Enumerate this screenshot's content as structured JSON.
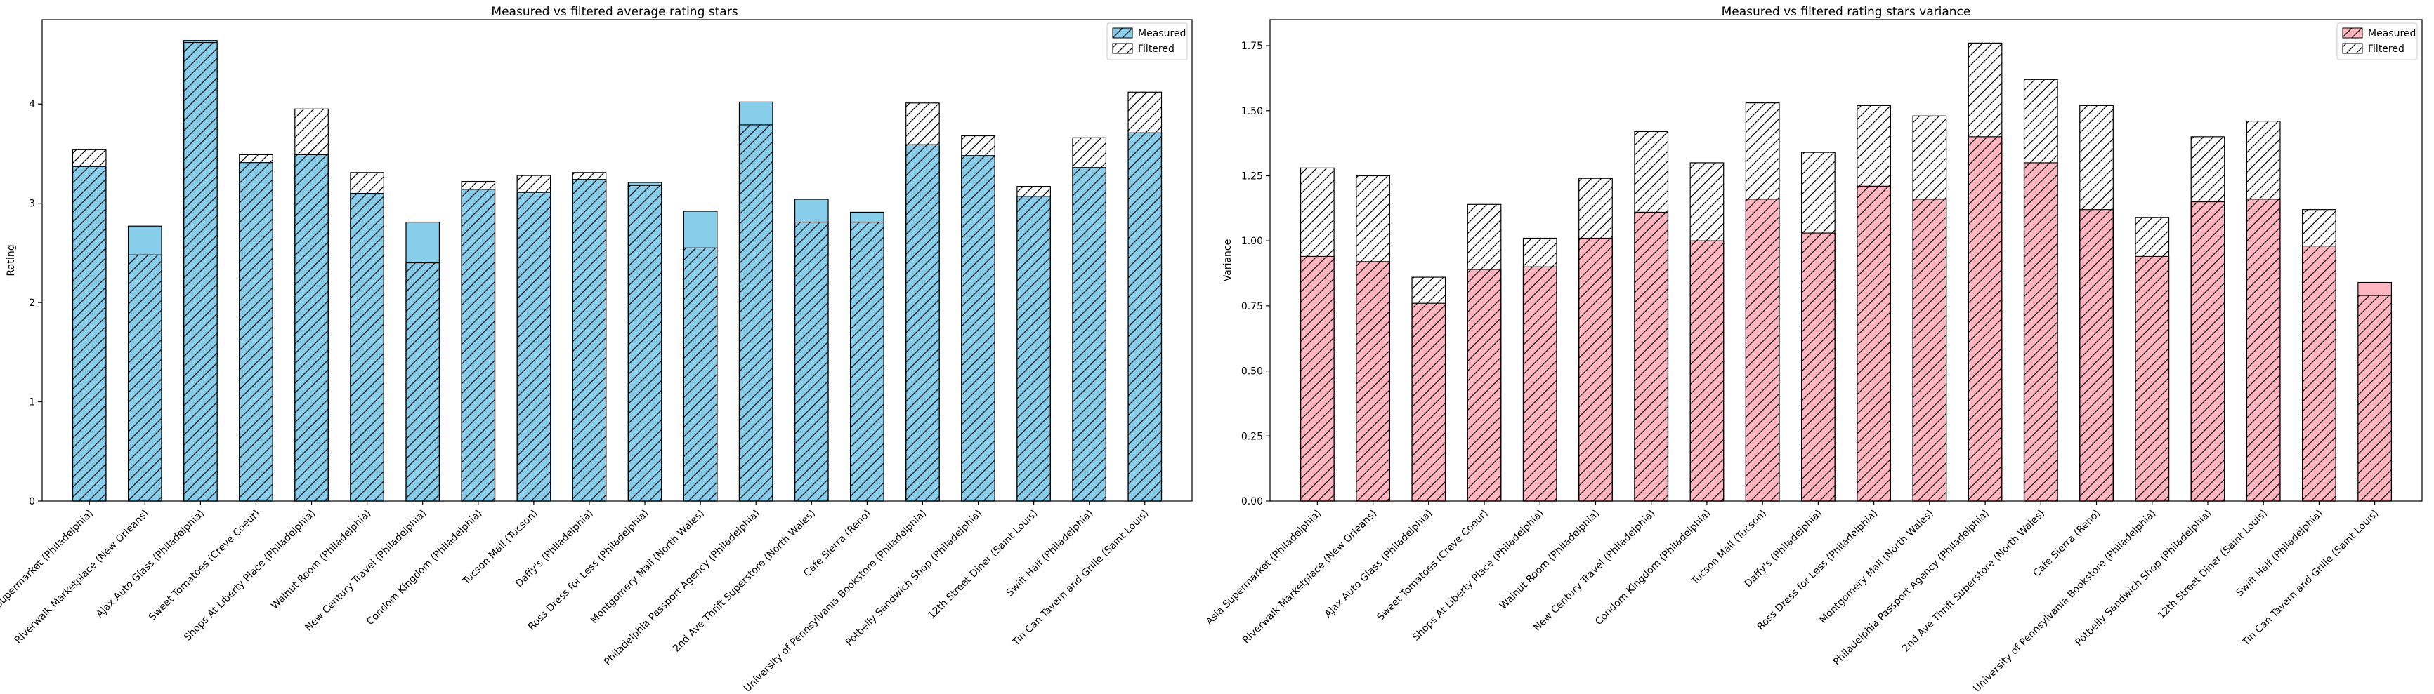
{
  "colors": {
    "measured_left": "#87ceeb",
    "measured_right": "#ffb6c1",
    "filtered": "#ffffff",
    "edge": "#000000"
  },
  "chart_data": [
    {
      "type": "bar",
      "title": "Measured vs filtered average rating stars",
      "ylabel": "Rating",
      "xlabel": "",
      "ylim": [
        0,
        4.85
      ],
      "yticks": [
        "0",
        "1",
        "2",
        "3",
        "4"
      ],
      "ytick_values": [
        0,
        1,
        2,
        3,
        4
      ],
      "legend": {
        "position": "top-right",
        "entries": [
          "Measured",
          "Filtered"
        ]
      },
      "grid": false,
      "categories": [
        "Asia Supermarket (Philadelphia)",
        "Riverwalk Marketplace (New Orleans)",
        "Ajax Auto Glass (Philadelphia)",
        "Sweet Tomatoes (Creve Coeur)",
        "Shops At Liberty Place (Philadelphia)",
        "Walnut Room (Philadelphia)",
        "New Century Travel (Philadelphia)",
        "Condom Kingdom (Philadelphia)",
        "Tucson Mall (Tucson)",
        "Daffy's (Philadelphia)",
        "Ross Dress for Less (Philadelphia)",
        "Montgomery Mall (North Wales)",
        "Philadelphia Passport Agency (Philadelphia)",
        "2nd Ave Thrift Superstore (North Wales)",
        "Cafe Sierra (Reno)",
        "University of Pennsylvania Bookstore (Philadelphia)",
        "Potbelly Sandwich Shop (Philadelphia)",
        "12th Street Diner (Saint Louis)",
        "Swift Half (Philadelphia)",
        "Tin Can Tavern and Grille (Saint Louis)"
      ],
      "series": [
        {
          "name": "Measured",
          "values": [
            3.37,
            2.77,
            4.64,
            3.41,
            3.49,
            3.1,
            2.81,
            3.14,
            3.11,
            3.24,
            3.21,
            2.92,
            4.02,
            3.04,
            2.91,
            3.59,
            3.48,
            3.07,
            3.36,
            3.71
          ]
        },
        {
          "name": "Filtered",
          "values": [
            3.54,
            2.48,
            4.62,
            3.49,
            3.95,
            3.31,
            2.4,
            3.22,
            3.28,
            3.31,
            3.18,
            2.55,
            3.79,
            2.81,
            2.81,
            4.01,
            3.68,
            3.17,
            3.66,
            4.12
          ]
        }
      ]
    },
    {
      "type": "bar",
      "title": "Measured vs filtered rating stars variance",
      "ylabel": "Variance",
      "xlabel": "",
      "ylim": [
        0,
        1.85
      ],
      "yticks": [
        "0.00",
        "0.25",
        "0.50",
        "0.75",
        "1.00",
        "1.25",
        "1.50",
        "1.75"
      ],
      "ytick_values": [
        0,
        0.25,
        0.5,
        0.75,
        1.0,
        1.25,
        1.5,
        1.75
      ],
      "legend": {
        "position": "top-right",
        "entries": [
          "Measured",
          "Filtered"
        ]
      },
      "grid": false,
      "categories": [
        "Asia Supermarket (Philadelphia)",
        "Riverwalk Marketplace (New Orleans)",
        "Ajax Auto Glass (Philadelphia)",
        "Sweet Tomatoes (Creve Coeur)",
        "Shops At Liberty Place (Philadelphia)",
        "Walnut Room (Philadelphia)",
        "New Century Travel (Philadelphia)",
        "Condom Kingdom (Philadelphia)",
        "Tucson Mall (Tucson)",
        "Daffy's (Philadelphia)",
        "Ross Dress for Less (Philadelphia)",
        "Montgomery Mall (North Wales)",
        "Philadelphia Passport Agency (Philadelphia)",
        "2nd Ave Thrift Superstore (North Wales)",
        "Cafe Sierra (Reno)",
        "University of Pennsylvania Bookstore (Philadelphia)",
        "Potbelly Sandwich Shop (Philadelphia)",
        "12th Street Diner (Saint Louis)",
        "Swift Half (Philadelphia)",
        "Tin Can Tavern and Grille (Saint Louis)"
      ],
      "series": [
        {
          "name": "Measured",
          "values": [
            0.94,
            0.92,
            0.76,
            0.89,
            0.9,
            1.01,
            1.11,
            1.0,
            1.16,
            1.03,
            1.21,
            1.16,
            1.4,
            1.3,
            1.12,
            0.94,
            1.15,
            1.16,
            0.98,
            0.84
          ]
        },
        {
          "name": "Filtered",
          "values": [
            1.28,
            1.25,
            0.86,
            1.14,
            1.01,
            1.24,
            1.42,
            1.3,
            1.53,
            1.34,
            1.52,
            1.48,
            1.76,
            1.62,
            1.52,
            1.09,
            1.4,
            1.46,
            1.12,
            0.79
          ]
        }
      ]
    }
  ]
}
